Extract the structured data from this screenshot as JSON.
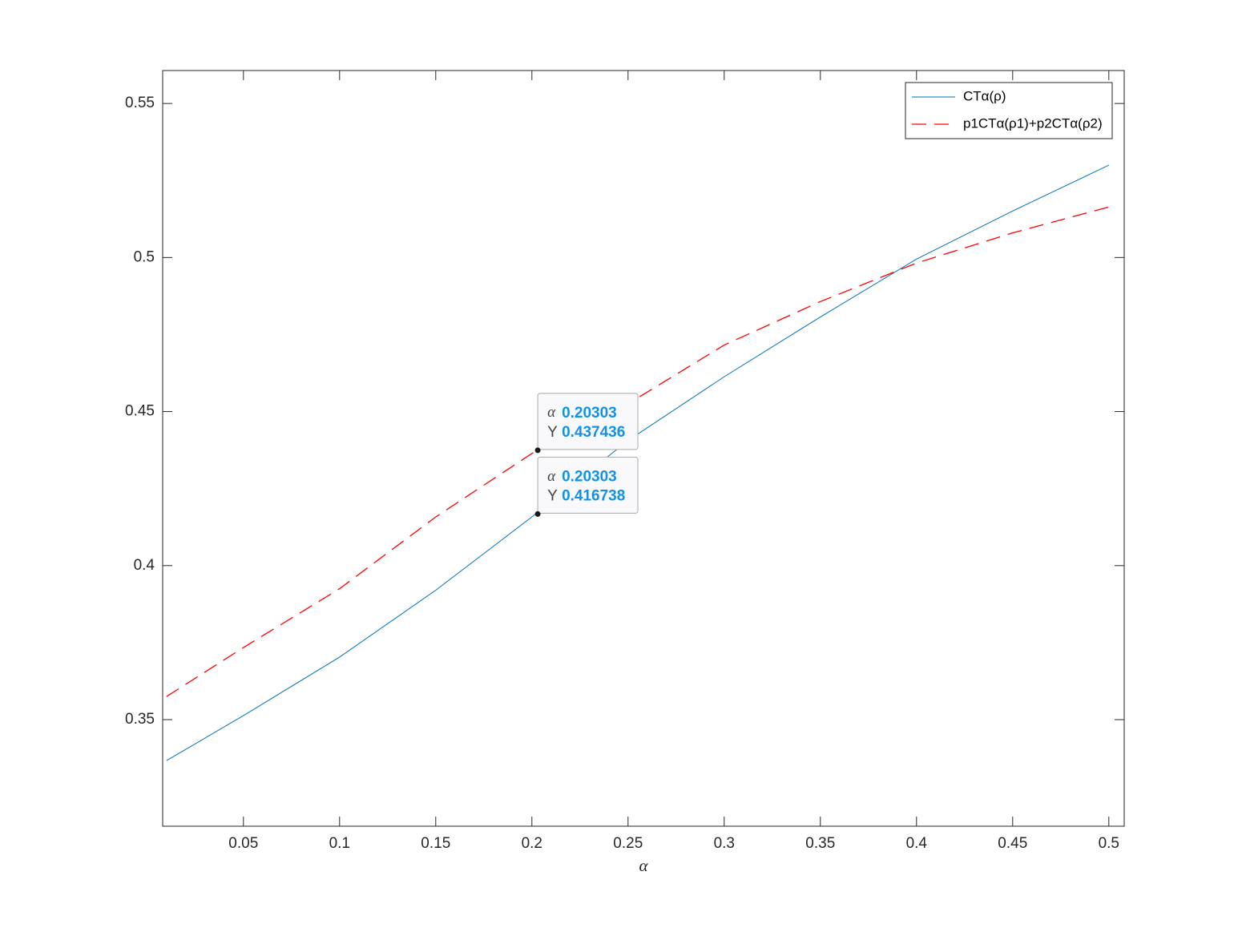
{
  "chart_data": {
    "type": "line",
    "x_label": "α",
    "x": [
      0.01,
      0.05,
      0.1,
      0.15,
      0.2,
      0.25,
      0.3,
      0.35,
      0.4,
      0.45,
      0.5
    ],
    "series": [
      {
        "name": "CTα(ρ)",
        "color": "#0072bd",
        "dash": false,
        "values": [
          0.3367,
          0.3513,
          0.3703,
          0.392,
          0.4158,
          0.4406,
          0.4613,
          0.4807,
          0.4995,
          0.5151,
          0.53
        ]
      },
      {
        "name": "p1CTα(ρ1)+p2CTα(ρ2)",
        "color": "#ff0000",
        "dash": true,
        "values": [
          0.3575,
          0.3734,
          0.3925,
          0.4158,
          0.4364,
          0.4525,
          0.4716,
          0.4857,
          0.4982,
          0.508,
          0.5164
        ]
      }
    ],
    "xlim": [
      0.008,
      0.508
    ],
    "ylim": [
      0.3154,
      0.5607
    ],
    "xticks": [
      0.05,
      0.1,
      0.15,
      0.2,
      0.25,
      0.3,
      0.35,
      0.4,
      0.45,
      0.5
    ],
    "yticks": [
      0.35,
      0.4,
      0.45,
      0.5,
      0.55
    ],
    "legend": "upper right",
    "datatips": [
      {
        "x_label": "α",
        "x": 0.20303,
        "y_label": "Y",
        "y": 0.437436
      },
      {
        "x_label": "α",
        "x": 0.20303,
        "y_label": "Y",
        "y": 0.416738
      }
    ]
  }
}
